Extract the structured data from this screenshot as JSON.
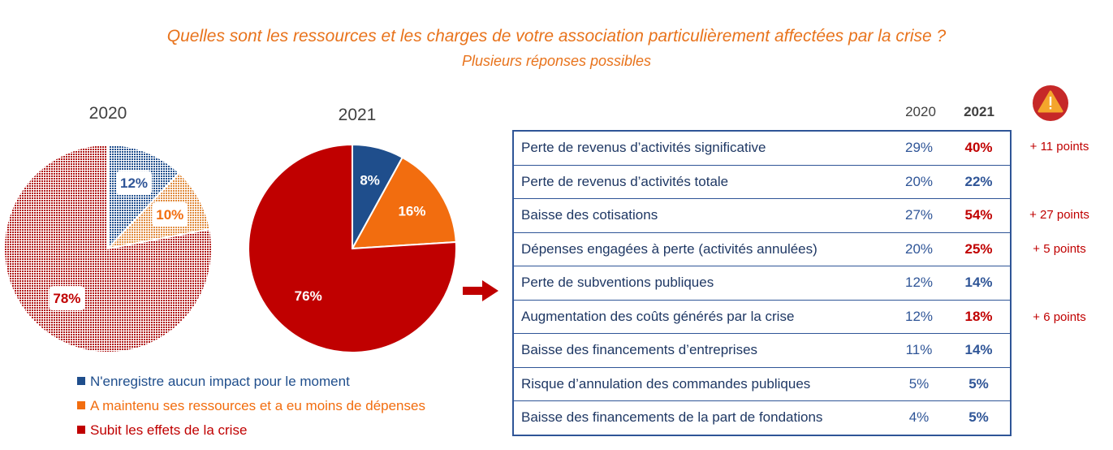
{
  "title": "Quelles sont les ressources et les charges de votre association particulièrement affectées par la crise ?",
  "subtitle": "Plusieurs réponses possibles",
  "colors": {
    "title": "#e8731c",
    "blue": "#1f4e8c",
    "orange": "#f26d0f",
    "red": "#c00000",
    "increase": "#c00000",
    "stable": "#2f5597"
  },
  "icons": {
    "arrow": "right-arrow-icon",
    "warning": "warning-triangle-icon"
  },
  "chart_data": [
    {
      "type": "pie",
      "title": "2020",
      "pattern": "hatched",
      "categories": [
        "N'enregistre aucun impact pour le moment",
        "A maintenu ses ressources et a eu moins de dépenses",
        "Subit les effets de la crise"
      ],
      "values": [
        12,
        10,
        78
      ],
      "labels": [
        "12%",
        "10%",
        "78%"
      ]
    },
    {
      "type": "pie",
      "title": "2021",
      "pattern": "solid",
      "categories": [
        "N'enregistre aucun impact pour le moment",
        "A maintenu ses ressources et a eu moins de dépenses",
        "Subit les effets de la crise"
      ],
      "values": [
        8,
        16,
        76
      ],
      "labels": [
        "8%",
        "16%",
        "76%"
      ]
    },
    {
      "type": "table",
      "columns": [
        "2020",
        "2021"
      ],
      "rows": [
        {
          "label": "Perte de revenus d’activités significative",
          "v2020": "29%",
          "v2021": "40%",
          "increase": true,
          "note": "+ 11 points"
        },
        {
          "label": "Perte de revenus d’activités totale",
          "v2020": "20%",
          "v2021": "22%",
          "increase": false,
          "note": ""
        },
        {
          "label": "Baisse des cotisations",
          "v2020": "27%",
          "v2021": "54%",
          "increase": true,
          "note": "+ 27 points"
        },
        {
          "label": "Dépenses engagées à perte (activités annulées)",
          "v2020": "20%",
          "v2021": "25%",
          "increase": true,
          "note": "+ 5 points"
        },
        {
          "label": "Perte de subventions publiques",
          "v2020": "12%",
          "v2021": "14%",
          "increase": false,
          "note": ""
        },
        {
          "label": "Augmentation des coûts générés par la crise",
          "v2020": "12%",
          "v2021": "18%",
          "increase": true,
          "note": "+ 6 points"
        },
        {
          "label": "Baisse des financements d’entreprises",
          "v2020": "11%",
          "v2021": "14%",
          "increase": false,
          "note": ""
        },
        {
          "label": "Risque d’annulation des commandes publiques",
          "v2020": "5%",
          "v2021": "5%",
          "increase": false,
          "note": ""
        },
        {
          "label": "Baisse des financements de la part de fondations",
          "v2020": "4%",
          "v2021": "5%",
          "increase": false,
          "note": ""
        }
      ]
    }
  ]
}
